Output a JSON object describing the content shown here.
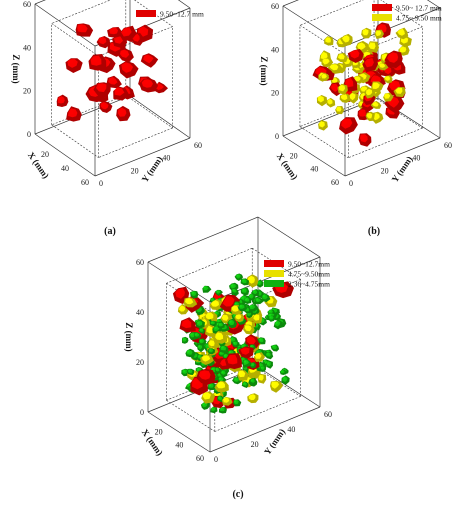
{
  "figure": {
    "panels": [
      {
        "id": "a",
        "caption": "(a)",
        "axes": {
          "x_label": "X (mm)",
          "y_label": "Y (mm)",
          "z_label": "Z (mm)",
          "x_ticks": [
            "20",
            "40",
            "60"
          ],
          "y_ticks": [
            "0",
            "20",
            "40",
            "60"
          ],
          "z_ticks": [
            "0",
            "20",
            "40",
            "60"
          ]
        },
        "legend": [
          {
            "label": "9.50~12.7 mm",
            "color": "#e00000"
          }
        ],
        "particle_counts": {
          "red": 28
        }
      },
      {
        "id": "b",
        "caption": "(b)",
        "axes": {
          "x_label": "X (mm)",
          "y_label": "Y (mm)",
          "z_label": "Z (mm)",
          "x_ticks": [
            "20",
            "40",
            "60"
          ],
          "y_ticks": [
            "0",
            "20",
            "40",
            "60"
          ],
          "z_ticks": [
            "0",
            "20",
            "40",
            "60"
          ]
        },
        "legend": [
          {
            "label": "9.50~ 12.7 mm",
            "color": "#e00000"
          },
          {
            "label": "4.75~ 9.50 mm",
            "color": "#e8e000"
          }
        ],
        "particle_counts": {
          "red": 28,
          "yellow": 60
        }
      },
      {
        "id": "c",
        "caption": "(c)",
        "axes": {
          "x_label": "X (mm)",
          "y_label": "Y (mm)",
          "z_label": "Z (mm)",
          "x_ticks": [
            "20",
            "40",
            "60"
          ],
          "y_ticks": [
            "0",
            "20",
            "40",
            "60"
          ],
          "z_ticks": [
            "0",
            "20",
            "40",
            "60"
          ]
        },
        "legend": [
          {
            "label": "9.50~12.7mm",
            "color": "#e00000"
          },
          {
            "label": "4.75~9.50mm",
            "color": "#e8e000"
          },
          {
            "label": "2.36~4.75mm",
            "color": "#10b010"
          }
        ],
        "particle_counts": {
          "red": 28,
          "yellow": 55,
          "green": 170
        }
      }
    ]
  }
}
